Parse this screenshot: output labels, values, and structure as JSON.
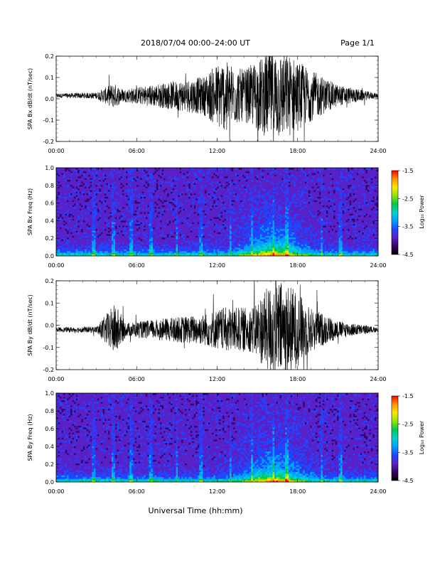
{
  "header": {
    "title": "2018/07/04  00:00–24:00 UT",
    "page": "Page 1/1"
  },
  "x_axis_label": "Universal Time (hh:mm)",
  "colors": {
    "colormap": [
      "#000000",
      "#3a0066",
      "#5a20c8",
      "#1e46ff",
      "#00a0ff",
      "#00d2d2",
      "#00c850",
      "#8ce600",
      "#ffe600",
      "#ff9600",
      "#ff0000"
    ]
  },
  "chart_data": [
    {
      "type": "line",
      "ylabel": "SPA Bx dB/dt (nT/sec)",
      "xlim": [
        0,
        24
      ],
      "ylim": [
        -0.2,
        0.2
      ],
      "x_ticks": [
        "00:00",
        "06:00",
        "12:00",
        "18:00",
        "24:00"
      ],
      "y_ticks": [
        "-0.2",
        "-0.1",
        "0.0",
        "0.1",
        "0.2"
      ],
      "baseline": 0.015,
      "amplitude_envelope": [
        {
          "x": 0,
          "amp": 0.01
        },
        {
          "x": 3,
          "amp": 0.015
        },
        {
          "x": 4.3,
          "amp": 0.06
        },
        {
          "x": 5,
          "amp": 0.03
        },
        {
          "x": 8,
          "amp": 0.06
        },
        {
          "x": 11,
          "amp": 0.09
        },
        {
          "x": 12.3,
          "amp": 0.17
        },
        {
          "x": 14,
          "amp": 0.12
        },
        {
          "x": 16.2,
          "amp": 0.22
        },
        {
          "x": 17.5,
          "amp": 0.19
        },
        {
          "x": 19,
          "amp": 0.12
        },
        {
          "x": 21,
          "amp": 0.05
        },
        {
          "x": 24,
          "amp": 0.01
        }
      ]
    },
    {
      "type": "heatmap",
      "ylabel": "SPA Bx Freq (Hz)",
      "xlim": [
        0,
        24
      ],
      "ylim": [
        0,
        1.0
      ],
      "x_ticks": [
        "00:00",
        "06:00",
        "12:00",
        "18:00",
        "24:00"
      ],
      "y_ticks": [
        "0.0",
        "0.2",
        "0.4",
        "0.6",
        "0.8",
        "1.0"
      ],
      "colorbar": {
        "label": "Log₁₀ Power",
        "range": [
          -4.5,
          -1.5
        ],
        "ticks": [
          "-1.5",
          "-2.5",
          "-3.5",
          "-4.5"
        ]
      }
    },
    {
      "type": "line",
      "ylabel": "SPA By dB/dt (nT/sec)",
      "xlim": [
        0,
        24
      ],
      "ylim": [
        -0.2,
        0.2
      ],
      "x_ticks": [
        "00:00",
        "06:00",
        "12:00",
        "18:00",
        "24:00"
      ],
      "y_ticks": [
        "-0.2",
        "-0.1",
        "0.0",
        "0.1",
        "0.2"
      ],
      "baseline": -0.02,
      "amplitude_envelope": [
        {
          "x": 0,
          "amp": 0.01
        },
        {
          "x": 3,
          "amp": 0.015
        },
        {
          "x": 4.4,
          "amp": 0.12
        },
        {
          "x": 5.2,
          "amp": 0.03
        },
        {
          "x": 8,
          "amp": 0.05
        },
        {
          "x": 11,
          "amp": 0.07
        },
        {
          "x": 12.5,
          "amp": 0.1
        },
        {
          "x": 14.5,
          "amp": 0.1
        },
        {
          "x": 16.3,
          "amp": 0.23
        },
        {
          "x": 17.5,
          "amp": 0.2
        },
        {
          "x": 19,
          "amp": 0.1
        },
        {
          "x": 21,
          "amp": 0.04
        },
        {
          "x": 24,
          "amp": 0.01
        }
      ]
    },
    {
      "type": "heatmap",
      "ylabel": "SPA By Freq (Hz)",
      "xlim": [
        0,
        24
      ],
      "ylim": [
        0,
        1.0
      ],
      "x_ticks": [
        "00:00",
        "06:00",
        "12:00",
        "18:00",
        "24:00"
      ],
      "y_ticks": [
        "0.0",
        "0.2",
        "0.4",
        "0.6",
        "0.8",
        "1.0"
      ],
      "colorbar": {
        "label": "Log₁₀ Power",
        "range": [
          -4.5,
          -1.5
        ],
        "ticks": [
          "-1.5",
          "-2.5",
          "-3.5",
          "-4.5"
        ]
      }
    }
  ]
}
